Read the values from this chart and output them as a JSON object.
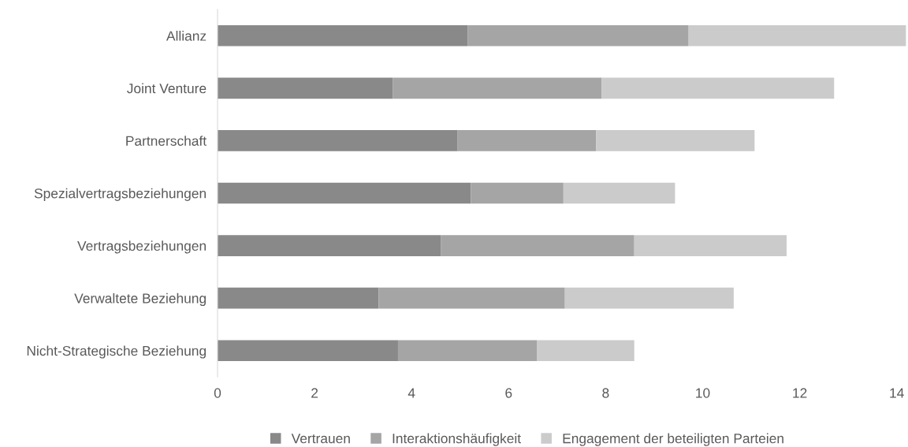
{
  "chart_data": {
    "type": "bar",
    "orientation": "horizontal",
    "stacked": true,
    "categories": [
      "Allianz",
      "Joint Venture",
      "Partnerschaft",
      "Spezialvertragsbeziehungen",
      "Vertragsbeziehungen",
      "Verwaltete Beziehung",
      "Nicht-Strategische Beziehung"
    ],
    "series": [
      {
        "name": "Vertrauen",
        "color": "#898989",
        "values": [
          5.16,
          3.61,
          4.95,
          5.22,
          4.6,
          3.32,
          3.72
        ]
      },
      {
        "name": "Interaktionshäufigkeit",
        "color": "#a5a5a5",
        "values": [
          4.55,
          4.31,
          2.85,
          1.91,
          3.99,
          3.84,
          2.86
        ]
      },
      {
        "name": "Engagement der beteiligten Parteien",
        "color": "#cbcbcb",
        "values": [
          4.48,
          4.79,
          3.27,
          2.3,
          3.14,
          3.48,
          2.01
        ]
      }
    ],
    "xlim": [
      0,
      14.2
    ],
    "xticks": [
      0,
      2,
      4,
      6,
      8,
      10,
      12,
      14
    ],
    "grid": false,
    "legend": "bottom"
  }
}
